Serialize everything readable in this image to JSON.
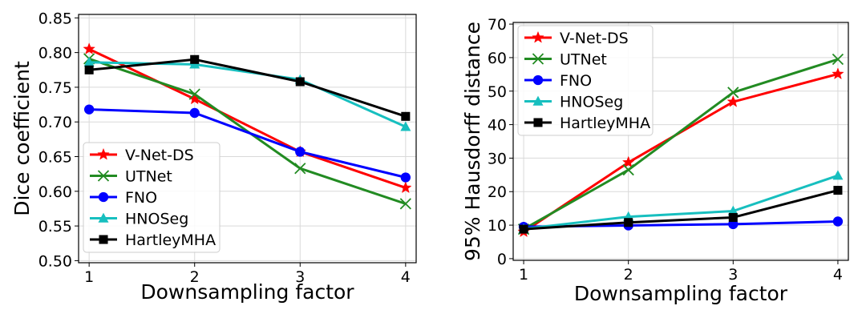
{
  "chart_data": [
    {
      "type": "line",
      "x": [
        1,
        2,
        3,
        4
      ],
      "xlabel": "Downsampling factor",
      "ylabel": "Dice coefficient",
      "xlim": [
        0.9,
        4.1
      ],
      "ylim": [
        0.497,
        0.855
      ],
      "xticks": [
        "1",
        "2",
        "3",
        "4"
      ],
      "yticks": [
        "0.50",
        "0.55",
        "0.60",
        "0.65",
        "0.70",
        "0.75",
        "0.80",
        "0.85"
      ],
      "grid": true,
      "legend_position": "lower-left",
      "series": [
        {
          "name": "V-Net-DS",
          "values": [
            0.805,
            0.733,
            0.657,
            0.605
          ],
          "color": "#ff0000",
          "marker": "star"
        },
        {
          "name": "UTNet",
          "values": [
            0.791,
            0.74,
            0.633,
            0.582
          ],
          "color": "#228b22",
          "marker": "x"
        },
        {
          "name": "FNO",
          "values": [
            0.718,
            0.713,
            0.657,
            0.62
          ],
          "color": "#0000ff",
          "marker": "circle"
        },
        {
          "name": "HNOSeg",
          "values": [
            0.786,
            0.783,
            0.761,
            0.693
          ],
          "color": "#17bfbf",
          "marker": "triangle"
        },
        {
          "name": "HartleyMHA",
          "values": [
            0.775,
            0.79,
            0.758,
            0.708
          ],
          "color": "#000000",
          "marker": "square"
        }
      ]
    },
    {
      "type": "line",
      "x": [
        1,
        2,
        3,
        4
      ],
      "xlabel": "Downsampling factor",
      "ylabel": "95% Hausdorff distance",
      "xlim": [
        0.9,
        4.1
      ],
      "ylim": [
        -0.5,
        70.5
      ],
      "xticks": [
        "1",
        "2",
        "3",
        "4"
      ],
      "yticks": [
        "0",
        "10",
        "20",
        "30",
        "40",
        "50",
        "60",
        "70"
      ],
      "grid": true,
      "legend_position": "upper-left",
      "series": [
        {
          "name": "V-Net-DS",
          "values": [
            8.0,
            28.7,
            46.8,
            55.1
          ],
          "color": "#ff0000",
          "marker": "star"
        },
        {
          "name": "UTNet",
          "values": [
            8.8,
            26.5,
            49.6,
            59.5
          ],
          "color": "#228b22",
          "marker": "x"
        },
        {
          "name": "FNO",
          "values": [
            9.5,
            9.9,
            10.3,
            11.1
          ],
          "color": "#0000ff",
          "marker": "circle"
        },
        {
          "name": "HNOSeg",
          "values": [
            8.9,
            12.5,
            14.2,
            24.8
          ],
          "color": "#17bfbf",
          "marker": "triangle"
        },
        {
          "name": "HartleyMHA",
          "values": [
            8.8,
            10.8,
            12.3,
            20.4
          ],
          "color": "#000000",
          "marker": "square"
        }
      ]
    }
  ]
}
